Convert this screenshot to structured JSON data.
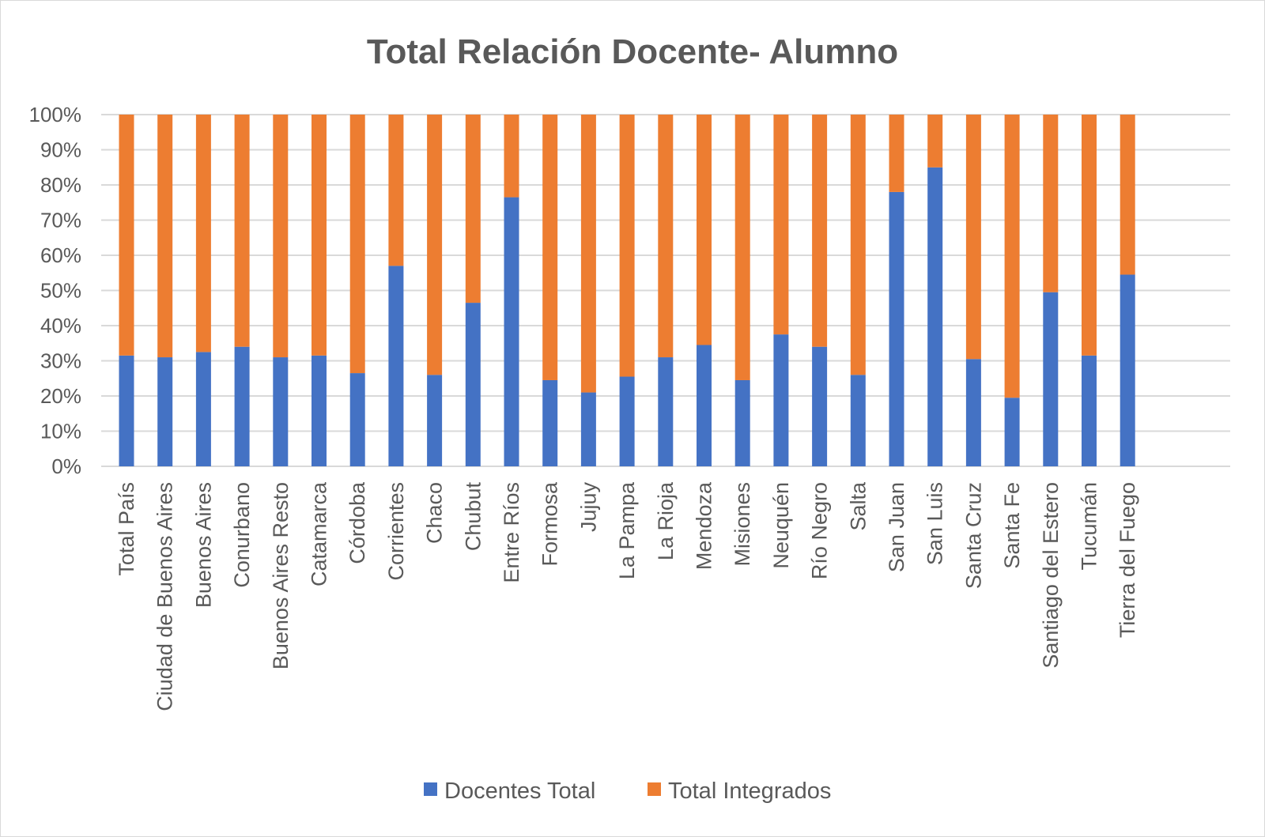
{
  "chart_data": {
    "type": "bar",
    "stacked": true,
    "normalized": true,
    "title": "Total Relación Docente- Alumno",
    "xlabel": "",
    "ylabel": "",
    "ylim": [
      0,
      100
    ],
    "yticks": [
      "0%",
      "10%",
      "20%",
      "30%",
      "40%",
      "50%",
      "60%",
      "70%",
      "80%",
      "90%",
      "100%"
    ],
    "grid": true,
    "legend_position": "bottom",
    "categories": [
      "Total País",
      "Ciudad de Buenos Aires",
      "Buenos Aires",
      "Conurbano",
      "Buenos Aires Resto",
      "Catamarca",
      "Córdoba",
      "Corrientes",
      "Chaco",
      "Chubut",
      "Entre Ríos",
      "Formosa",
      "Jujuy",
      "La Pampa",
      "La Rioja",
      "Mendoza",
      "Misiones",
      "Neuquén",
      "Río Negro",
      "Salta",
      "San Juan",
      "San Luis",
      "Santa Cruz",
      "Santa Fe",
      "Santiago del Estero",
      "Tucumán",
      "Tierra del Fuego"
    ],
    "series": [
      {
        "name": "Docentes Total",
        "color": "#4472c4",
        "values": [
          31.5,
          31,
          32.5,
          34,
          31,
          31.5,
          26.5,
          57,
          26,
          46.5,
          76.5,
          24.5,
          21,
          25.5,
          31,
          34.5,
          24.5,
          37.5,
          34,
          26,
          78,
          85,
          30.5,
          19.5,
          49.5,
          31.5,
          54.5
        ]
      },
      {
        "name": "Total Integrados",
        "color": "#ed7d31",
        "values": [
          68.5,
          69,
          67.5,
          66,
          69,
          68.5,
          73.5,
          43,
          74,
          53.5,
          23.5,
          75.5,
          79,
          74.5,
          69,
          65.5,
          75.5,
          62.5,
          66,
          74,
          22,
          15,
          69.5,
          80.5,
          50.5,
          68.5,
          45.5
        ]
      }
    ]
  }
}
